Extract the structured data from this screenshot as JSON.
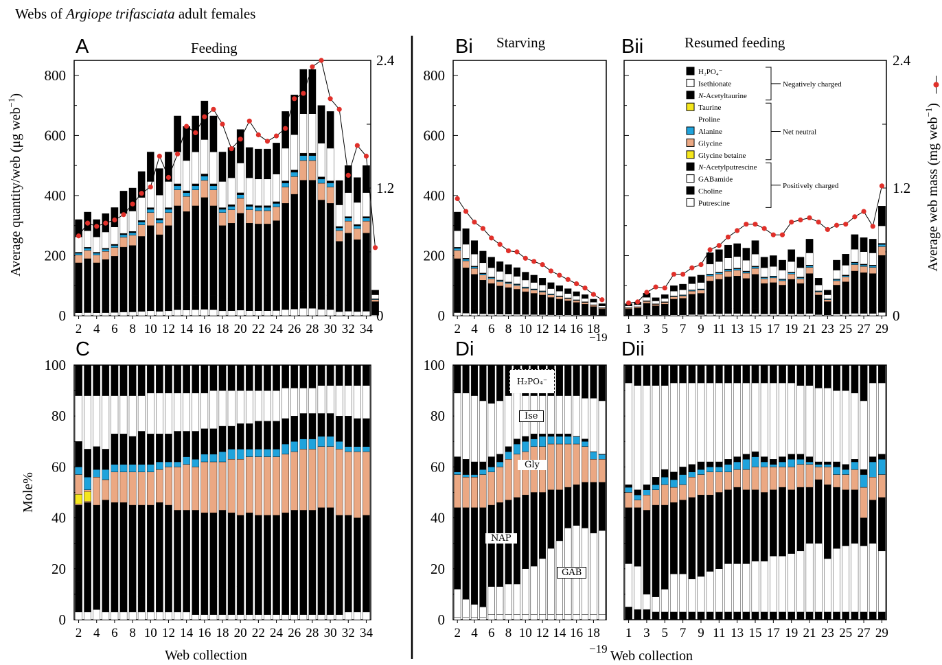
{
  "header": {
    "title_prefix": "Webs of ",
    "title_species": "Argiope trifasciata",
    "title_suffix": " adult females"
  },
  "colors": {
    "bar_black": "#000000",
    "bar_white": "#ffffff",
    "alanine": "#1fa3dc",
    "glycine": "#eba883",
    "taurine": "#f5e61c",
    "web_mass": "#e0302a"
  },
  "panels": {
    "A": {
      "letter": "A",
      "title": "Feeding"
    },
    "Bi": {
      "letter": "Bi",
      "title": "Starving"
    },
    "Bii": {
      "letter": "Bii",
      "title": "Resumed feeding"
    },
    "C": {
      "letter": "C"
    },
    "Di": {
      "letter": "Di"
    },
    "Dii": {
      "letter": "Dii"
    }
  },
  "axes": {
    "top_ylabel": "Average quantity/web (μg web",
    "top_ylabel_sup": "−1",
    "top_ylabel_end": ")",
    "right_ylabel": "Average web mass (mg web",
    "right_ylabel_sup": "−1",
    "right_ylabel_end": ")",
    "bottom_ylabel": "Mole%",
    "xlabel_left": "Web collection",
    "xlabel_right": "Web collection",
    "suffix_label": "−19",
    "top_y_ticks": [
      "0",
      "200",
      "400",
      "600",
      "800"
    ],
    "right_y_ticks": [
      "0",
      "1.2",
      "2.4"
    ],
    "bottom_y_ticks": [
      "0",
      "20",
      "40",
      "60",
      "80",
      "100"
    ]
  },
  "legend": {
    "items": [
      {
        "label": "H₂PO₄⁻",
        "swatch": "black"
      },
      {
        "label": "Isethionate",
        "swatch": "white"
      },
      {
        "label": "N-Acetyltaurine",
        "swatch": "black",
        "italic_prefix": "N"
      },
      {
        "label": "Taurine",
        "swatch": "yellow"
      },
      {
        "label": "Proline",
        "swatch": "none"
      },
      {
        "label": "Alanine",
        "swatch": "blue"
      },
      {
        "label": "Glycine",
        "swatch": "peach"
      },
      {
        "label": "Glycine betaine",
        "swatch": "yellow"
      },
      {
        "label": "N-Acetylputrescine",
        "swatch": "black",
        "italic_prefix": "N"
      },
      {
        "label": "GABamide",
        "swatch": "white"
      },
      {
        "label": "Choline",
        "swatch": "black"
      },
      {
        "label": "Putrescine",
        "swatch": "white"
      }
    ],
    "groups": [
      "Negatively charged",
      "Net neutral",
      "Positively charged"
    ]
  },
  "annotations": {
    "h2po4": "H₂PO₄⁻",
    "ise": "Ise",
    "gly": "Gly",
    "nap": "NAP",
    "gab": "GAB"
  },
  "chart_data": [
    {
      "panel": "A",
      "type": "bar",
      "stacked": true,
      "title": "Feeding",
      "x_start": 2,
      "x_end": 34,
      "x_ticks": [
        "2",
        "4",
        "6",
        "8",
        "10",
        "12",
        "14",
        "16",
        "18",
        "20",
        "22",
        "24",
        "26",
        "28",
        "30",
        "32",
        "34"
      ],
      "ylim": [
        0,
        850
      ],
      "y2lim": [
        0,
        2.4
      ],
      "totals": [
        320,
        345,
        320,
        340,
        360,
        415,
        425,
        480,
        545,
        490,
        545,
        665,
        630,
        665,
        715,
        665,
        545,
        560,
        620,
        560,
        555,
        555,
        575,
        680,
        735,
        820,
        820,
        700,
        680,
        450,
        500,
        460,
        500,
        85
      ],
      "web_mass": [
        0.75,
        0.87,
        0.84,
        0.87,
        0.9,
        0.95,
        1.05,
        1.15,
        1.21,
        1.5,
        1.3,
        1.52,
        1.78,
        1.72,
        1.87,
        1.94,
        1.8,
        1.57,
        1.66,
        1.83,
        1.7,
        1.64,
        1.69,
        1.76,
        2.04,
        2.09,
        2.34,
        2.4,
        2.04,
        1.94,
        1.32,
        1.6,
        1.5,
        0.64
      ]
    },
    {
      "panel": "Bi",
      "type": "bar",
      "stacked": true,
      "title": "Starving",
      "x_start": 2,
      "x_end": 19,
      "x_ticks": [
        "2",
        "4",
        "6",
        "8",
        "10",
        "12",
        "14",
        "16",
        "18"
      ],
      "ylim": [
        0,
        850
      ],
      "y2lim": [
        0,
        2.4
      ],
      "totals": [
        345,
        290,
        250,
        215,
        195,
        180,
        170,
        160,
        145,
        135,
        125,
        110,
        100,
        90,
        80,
        70,
        55,
        40
      ],
      "web_mass": [
        1.1,
        0.98,
        0.88,
        0.82,
        0.73,
        0.67,
        0.61,
        0.6,
        0.54,
        0.51,
        0.48,
        0.42,
        0.38,
        0.34,
        0.3,
        0.26,
        0.2,
        0.15
      ]
    },
    {
      "panel": "Bii",
      "type": "bar",
      "stacked": true,
      "title": "Resumed feeding",
      "x_start": 1,
      "x_end": 29,
      "x_ticks": [
        "1",
        "3",
        "5",
        "7",
        "9",
        "11",
        "13",
        "15",
        "17",
        "19",
        "21",
        "23",
        "25",
        "27",
        "29"
      ],
      "ylim": [
        0,
        850
      ],
      "y2lim": [
        0,
        2.4
      ],
      "totals": [
        40,
        45,
        75,
        60,
        70,
        100,
        105,
        130,
        135,
        210,
        220,
        235,
        240,
        225,
        250,
        195,
        200,
        185,
        220,
        195,
        255,
        125,
        85,
        185,
        205,
        270,
        260,
        255,
        365
      ],
      "web_mass": [
        0.12,
        0.13,
        0.22,
        0.27,
        0.26,
        0.39,
        0.39,
        0.45,
        0.48,
        0.62,
        0.66,
        0.74,
        0.8,
        0.86,
        0.86,
        0.82,
        0.76,
        0.76,
        0.88,
        0.9,
        0.92,
        0.88,
        0.81,
        0.85,
        0.86,
        0.93,
        0.98,
        0.84,
        1.22
      ]
    },
    {
      "panel": "C",
      "type": "bar",
      "stacked": true,
      "ylabel": "Mole%",
      "x_start": 2,
      "x_end": 34,
      "ylim": [
        0,
        100
      ],
      "x_ticks": [
        "2",
        "4",
        "6",
        "8",
        "10",
        "12",
        "14",
        "16",
        "18",
        "20",
        "22",
        "24",
        "26",
        "28",
        "30",
        "32",
        "34"
      ],
      "boundaries": {
        "putrescine_top": [
          3,
          3,
          4,
          3,
          3,
          3,
          3,
          3,
          3,
          3,
          3,
          3,
          3,
          2,
          2,
          2,
          2,
          2,
          2,
          2,
          2,
          2,
          2,
          2,
          2,
          2,
          2,
          2,
          2,
          2,
          3,
          3,
          3,
          3
        ],
        "choline_top": [
          15,
          12,
          10,
          11,
          10,
          10,
          10,
          9,
          9,
          11,
          11,
          11,
          12,
          12,
          12,
          13,
          12,
          12,
          13,
          11,
          11,
          11,
          11,
          12,
          12,
          12,
          12,
          11,
          11,
          11,
          11,
          11,
          12,
          15
        ],
        "nap_top": [
          45,
          46,
          45,
          47,
          46,
          46,
          45,
          45,
          45,
          46,
          45,
          43,
          43,
          43,
          42,
          42,
          43,
          42,
          41,
          42,
          41,
          41,
          41,
          42,
          43,
          43,
          43,
          44,
          44,
          41,
          41,
          40,
          41,
          54
        ],
        "glycine_top": [
          57,
          51,
          56,
          55,
          58,
          58,
          58,
          58,
          58,
          59,
          60,
          60,
          61,
          60,
          62,
          62,
          62,
          63,
          63,
          64,
          64,
          64,
          64,
          65,
          66,
          67,
          67,
          68,
          68,
          67,
          66,
          66,
          66,
          60
        ],
        "alanine_top": [
          60,
          56,
          59,
          59,
          61,
          61,
          61,
          61,
          61,
          62,
          62,
          62,
          64,
          63,
          65,
          65,
          66,
          67,
          67,
          67,
          67,
          67,
          67,
          69,
          70,
          71,
          71,
          72,
          72,
          70,
          68,
          68,
          68,
          62
        ],
        "nat_top": [
          70,
          67,
          68,
          67,
          73,
          73,
          72,
          74,
          73,
          73,
          73,
          74,
          74,
          74,
          75,
          75,
          76,
          76,
          77,
          77,
          78,
          78,
          78,
          79,
          80,
          81,
          81,
          81,
          81,
          80,
          80,
          79,
          79,
          70
        ],
        "ise_top": [
          88,
          88,
          88,
          88,
          88,
          88,
          88,
          88,
          89,
          89,
          89,
          89,
          89,
          89,
          89,
          90,
          90,
          90,
          90,
          90,
          90,
          90,
          90,
          91,
          91,
          91,
          91,
          92,
          92,
          92,
          92,
          92,
          92,
          86
        ]
      }
    },
    {
      "panel": "Di",
      "type": "bar",
      "stacked": true,
      "x_start": 2,
      "x_end": 19,
      "ylim": [
        0,
        100
      ],
      "x_ticks": [
        "2",
        "4",
        "6",
        "8",
        "10",
        "12",
        "14",
        "16",
        "18"
      ],
      "boundaries": {
        "putrescine_top": [
          1,
          1,
          1,
          1,
          2,
          2,
          2,
          2,
          2,
          2,
          2,
          2,
          2,
          2,
          2,
          2,
          2,
          2
        ],
        "choline_top": [
          12,
          8,
          6,
          5,
          5,
          5,
          4,
          4,
          4,
          5,
          5,
          5,
          5,
          5,
          5,
          5,
          5,
          5
        ],
        "nap_top": [
          44,
          44,
          44,
          44,
          45,
          46,
          47,
          48,
          49,
          50,
          50,
          51,
          51,
          52,
          53,
          54,
          54,
          54
        ],
        "glycine_top": [
          57,
          56,
          56,
          57,
          58,
          60,
          63,
          65,
          66,
          68,
          68,
          69,
          69,
          69,
          69,
          68,
          63,
          63
        ],
        "alanine_top": [
          58,
          57,
          57,
          59,
          60,
          62,
          66,
          69,
          70,
          71,
          72,
          72,
          72,
          72,
          72,
          70,
          66,
          65
        ],
        "nat_top": [
          64,
          63,
          62,
          62,
          64,
          65,
          68,
          71,
          72,
          73,
          73,
          73,
          73,
          73,
          72,
          71,
          66,
          65
        ],
        "ise_top": [
          89,
          89,
          88,
          86,
          85,
          86,
          88,
          89,
          88,
          88,
          88,
          88,
          88,
          88,
          88,
          87,
          87,
          86
        ]
      },
      "white_gab_ranges": [
        [
          1,
          12
        ],
        [
          1,
          8
        ],
        [
          1,
          6
        ],
        [
          1,
          5
        ],
        [
          2,
          13
        ],
        [
          2,
          13
        ],
        [
          2,
          14
        ],
        [
          2,
          14
        ],
        [
          2,
          20
        ],
        [
          2,
          21
        ],
        [
          2,
          24
        ],
        [
          2,
          28
        ],
        [
          2,
          31
        ],
        [
          2,
          36
        ],
        [
          2,
          37
        ],
        [
          2,
          36
        ],
        [
          2,
          34
        ],
        [
          2,
          35
        ]
      ]
    },
    {
      "panel": "Dii",
      "type": "bar",
      "stacked": true,
      "x_start": 1,
      "x_end": 29,
      "ylim": [
        0,
        100
      ],
      "x_ticks": [
        "1",
        "3",
        "5",
        "7",
        "9",
        "11",
        "13",
        "15",
        "17",
        "19",
        "21",
        "23",
        "25",
        "27",
        "29"
      ],
      "boundaries": {
        "nap_top": [
          44,
          44,
          43,
          45,
          45,
          46,
          47,
          48,
          49,
          49,
          50,
          51,
          52,
          51,
          51,
          50,
          51,
          52,
          51,
          52,
          52,
          55,
          53,
          52,
          51,
          51,
          40,
          47,
          48
        ],
        "glycine_top": [
          50,
          47,
          49,
          51,
          53,
          52,
          53,
          56,
          57,
          58,
          58,
          58,
          59,
          59,
          60,
          60,
          60,
          60,
          60,
          61,
          61,
          60,
          60,
          57,
          57,
          59,
          52,
          56,
          57
        ],
        "alanine_top": [
          52,
          49,
          51,
          53,
          56,
          55,
          57,
          58,
          59,
          60,
          60,
          61,
          62,
          63,
          64,
          62,
          61,
          62,
          63,
          63,
          62,
          61,
          61,
          60,
          59,
          62,
          57,
          62,
          63
        ],
        "nat_top": [
          53,
          51,
          53,
          56,
          59,
          58,
          60,
          61,
          62,
          62,
          62,
          63,
          64,
          65,
          66,
          64,
          63,
          64,
          65,
          65,
          64,
          62,
          62,
          62,
          61,
          63,
          59,
          64,
          65
        ],
        "ise_top": [
          93,
          92,
          92,
          92,
          92,
          93,
          93,
          93,
          93,
          93,
          93,
          93,
          93,
          93,
          93,
          93,
          93,
          93,
          93,
          92,
          92,
          91,
          91,
          90,
          90,
          89,
          86,
          93,
          93
        ]
      },
      "white_gab_ranges": [
        [
          5,
          22
        ],
        [
          4,
          21
        ],
        [
          4,
          10
        ],
        [
          3,
          9
        ],
        [
          3,
          12
        ],
        [
          3,
          18
        ],
        [
          3,
          18
        ],
        [
          3,
          16
        ],
        [
          3,
          17
        ],
        [
          3,
          19
        ],
        [
          3,
          20
        ],
        [
          3,
          22
        ],
        [
          3,
          22
        ],
        [
          3,
          22
        ],
        [
          3,
          23
        ],
        [
          3,
          23
        ],
        [
          3,
          25
        ],
        [
          3,
          25
        ],
        [
          3,
          26
        ],
        [
          3,
          27
        ],
        [
          3,
          30
        ],
        [
          3,
          30
        ],
        [
          3,
          24
        ],
        [
          3,
          28
        ],
        [
          3,
          29
        ],
        [
          3,
          30
        ],
        [
          3,
          29
        ],
        [
          3,
          30
        ],
        [
          3,
          27
        ]
      ]
    }
  ]
}
